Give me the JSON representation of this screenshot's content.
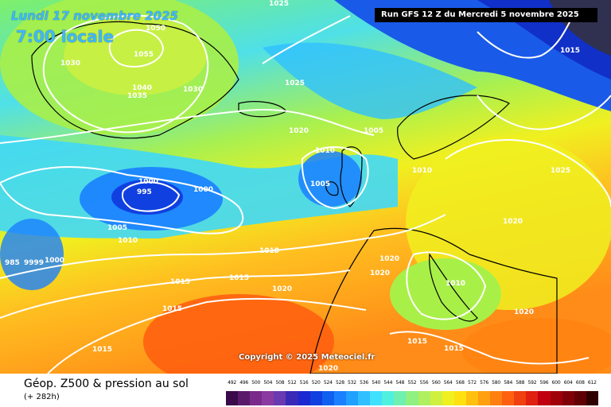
{
  "header": {
    "date_text": "Lundi 17 novembre 2025",
    "time_text": "7:00 locale",
    "run_text": "Run GFS 12 Z du Mercredi 5 novembre 2025",
    "copyright": "Copyright © 2025 Meteociel.fr"
  },
  "footer": {
    "title": "Géop. Z500 & pression au sol",
    "subtitle": "(+ 282h)"
  },
  "legend": {
    "values": [
      "492",
      "496",
      "500",
      "504",
      "508",
      "512",
      "516",
      "520",
      "524",
      "528",
      "532",
      "536",
      "540",
      "544",
      "548",
      "552",
      "556",
      "560",
      "564",
      "568",
      "572",
      "576",
      "580",
      "584",
      "588",
      "592",
      "596",
      "600",
      "604",
      "608",
      "612"
    ],
    "colors": [
      "#3a0a4a",
      "#5a1a6a",
      "#7a2a8a",
      "#8a3aa0",
      "#6a3ab0",
      "#3a2ab8",
      "#1a2ad0",
      "#1040e0",
      "#1060f0",
      "#1a80ff",
      "#20a0ff",
      "#30c0ff",
      "#40e0ff",
      "#50f0e0",
      "#70f0b0",
      "#90f080",
      "#b0f060",
      "#d0f040",
      "#f0f020",
      "#ffe010",
      "#ffc010",
      "#ffa010",
      "#ff8010",
      "#ff6010",
      "#f04010",
      "#e02010",
      "#c00010",
      "#a00008",
      "#800008",
      "#600004",
      "#300000"
    ]
  },
  "isobars": [
    "1025",
    "1050",
    "1055",
    "1030",
    "1040",
    "1035",
    "1030",
    "1025",
    "1020",
    "1005",
    "1010",
    "1005",
    "1000",
    "995",
    "1000",
    "1005",
    "1010",
    "1010",
    "1015",
    "985",
    "9999",
    "1000",
    "1010",
    "1015",
    "1015",
    "1015",
    "1020",
    "1020",
    "1020",
    "1010",
    "1015",
    "1015",
    "1020",
    "1015",
    "1010",
    "1020",
    "1020",
    "1025",
    "1015"
  ]
}
